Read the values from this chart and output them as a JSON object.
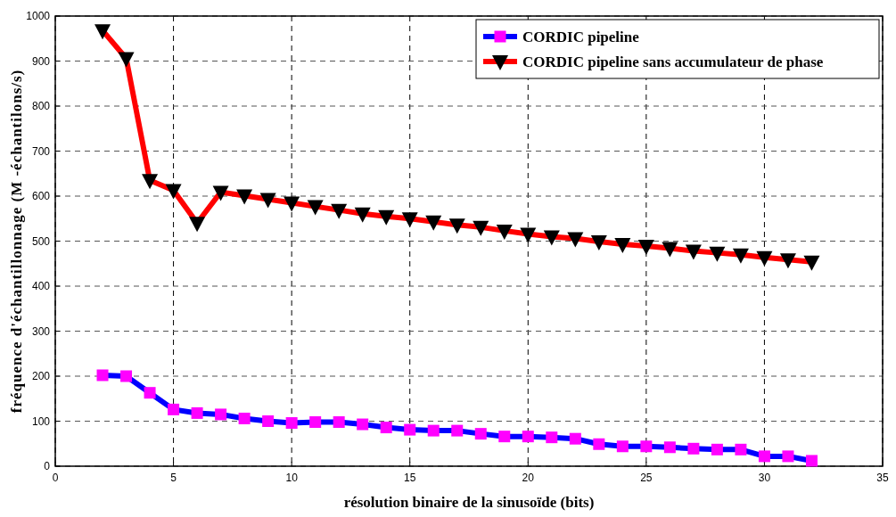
{
  "chart_data": {
    "type": "line",
    "xlabel": "résolution binaire de la sinusoïde (bits)",
    "ylabel": "fréquence d'échantillonnage (M -échantilons/s)",
    "x": [
      2,
      3,
      4,
      5,
      6,
      7,
      8,
      9,
      10,
      11,
      12,
      13,
      14,
      15,
      16,
      17,
      18,
      19,
      20,
      21,
      22,
      23,
      24,
      25,
      26,
      27,
      28,
      29,
      30,
      31,
      32
    ],
    "series": [
      {
        "name": "CORDIC pipeline",
        "color": "#0000ff",
        "marker": "square",
        "values": [
          202,
          200,
          163,
          126,
          118,
          115,
          106,
          100,
          96,
          98,
          98,
          93,
          86,
          81,
          79,
          79,
          72,
          66,
          66,
          64,
          61,
          49,
          44,
          44,
          42,
          39,
          37,
          37,
          22,
          22,
          12
        ]
      },
      {
        "name": "CORDIC pipeline sans accumulateur de phase",
        "color": "#ff0000",
        "marker": "triangle",
        "values": [
          968,
          906,
          635,
          613,
          540,
          609,
          601,
          593,
          585,
          577,
          569,
          561,
          555,
          550,
          543,
          536,
          531,
          523,
          516,
          510,
          506,
          499,
          493,
          489,
          484,
          478,
          474,
          470,
          464,
          459,
          454
        ]
      }
    ],
    "xlim": [
      0,
      35
    ],
    "xticks": [
      0,
      5,
      10,
      15,
      20,
      25,
      30,
      35
    ],
    "ylim": [
      0,
      1000
    ],
    "yticks": [
      0,
      100,
      200,
      300,
      400,
      500,
      600,
      700,
      800,
      900,
      1000
    ],
    "grid": true,
    "legend": "top right",
    "line_style": "solid"
  }
}
